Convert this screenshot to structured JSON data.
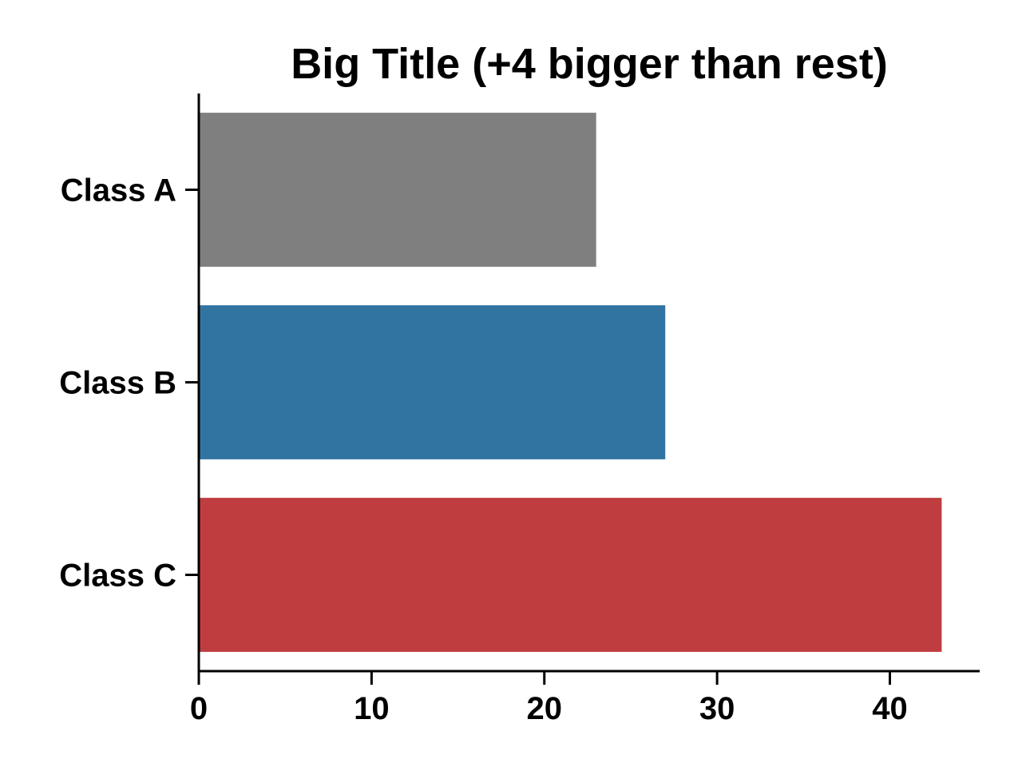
{
  "chart_data": {
    "type": "bar",
    "orientation": "horizontal",
    "title": "Big Title (+4 bigger than rest)",
    "xlabel": "",
    "ylabel": "",
    "categories": [
      "Class A",
      "Class B",
      "Class C"
    ],
    "values": [
      23,
      27,
      43
    ],
    "colors": [
      "#7f7f7f",
      "#3274a1",
      "#bf3d3f"
    ],
    "xlim": [
      0,
      45.2
    ],
    "xticks": [
      0,
      10,
      20,
      30,
      40
    ],
    "xtick_labels": [
      "0",
      "10",
      "20",
      "30",
      "40"
    ],
    "grid": false,
    "legend": "none"
  }
}
